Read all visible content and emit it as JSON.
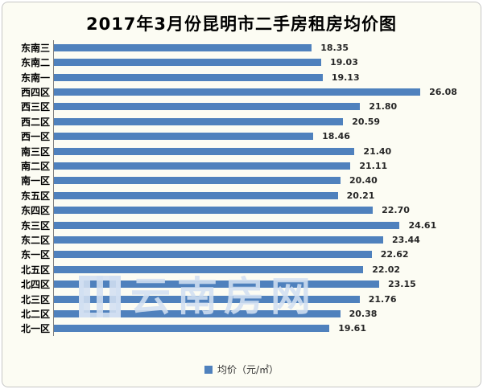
{
  "window": {
    "background_color": "#fcfcf3",
    "border_color": "#c6c6c6"
  },
  "chart_data": {
    "type": "bar",
    "orientation": "horizontal",
    "title": "2017年3月份昆明市二手房租房均价图",
    "categories": [
      "东南三",
      "东南二",
      "东南一",
      "西四区",
      "西三区",
      "西二区",
      "西一区",
      "南三区",
      "南二区",
      "南一区",
      "东五区",
      "东四区",
      "东三区",
      "东二区",
      "东一区",
      "北五区",
      "北四区",
      "北三区",
      "北二区",
      "北一区"
    ],
    "values": [
      18.35,
      19.03,
      19.13,
      26.08,
      21.8,
      20.59,
      18.46,
      21.4,
      21.11,
      20.4,
      20.21,
      22.7,
      24.61,
      23.44,
      22.62,
      22.02,
      23.15,
      21.76,
      20.38,
      19.61
    ],
    "value_labels": [
      "18.35",
      "19.03",
      "19.13",
      "26.08",
      "21.80",
      "20.59",
      "18.46",
      "21.40",
      "21.11",
      "20.40",
      "20.21",
      "22.70",
      "24.61",
      "23.44",
      "22.62",
      "22.02",
      "23.15",
      "21.76",
      "20.38",
      "19.61"
    ],
    "xlim": [
      0,
      30
    ],
    "grid": false,
    "bar_color": "#4f81bd",
    "legend": {
      "label": "均价（元/㎡）",
      "position": "bottom",
      "marker_color": "#4f81bd"
    }
  },
  "watermark": {
    "text": "云南房网"
  }
}
